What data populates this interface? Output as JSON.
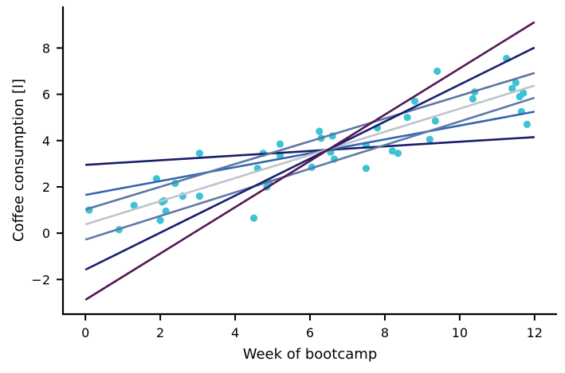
{
  "chart_data": {
    "type": "scatter",
    "title": "",
    "xlabel": "Week of bootcamp",
    "ylabel": "Coffee consumption [l]",
    "xlim": [
      -0.6,
      12.6
    ],
    "ylim": [
      -3.5,
      9.8
    ],
    "xticks": [
      0,
      2,
      4,
      6,
      8,
      10,
      12
    ],
    "yticks": [
      -2,
      0,
      2,
      4,
      6,
      8
    ],
    "grid": false,
    "legend": "none",
    "points": {
      "color": "#3cc3d4",
      "x": [
        0.1,
        0.9,
        1.3,
        1.9,
        2.0,
        2.05,
        2.1,
        2.15,
        2.4,
        2.6,
        3.05,
        3.05,
        4.5,
        4.6,
        4.75,
        4.85,
        4.9,
        5.2,
        5.2,
        6.05,
        6.25,
        6.3,
        6.55,
        6.6,
        6.65,
        7.5,
        7.5,
        7.8,
        8.2,
        8.35,
        8.6,
        8.8,
        9.2,
        9.35,
        9.4,
        10.35,
        10.4,
        11.25,
        11.4,
        11.5,
        11.6,
        11.65,
        11.7,
        11.8
      ],
      "y": [
        1.0,
        0.15,
        1.2,
        2.35,
        0.55,
        1.35,
        1.4,
        0.95,
        2.15,
        1.6,
        1.6,
        3.45,
        0.65,
        2.8,
        3.45,
        2.0,
        2.2,
        3.35,
        3.85,
        2.85,
        4.4,
        4.1,
        3.5,
        4.2,
        3.2,
        3.8,
        2.8,
        4.55,
        3.55,
        3.45,
        5.0,
        5.7,
        4.05,
        4.85,
        7.0,
        5.8,
        6.1,
        7.55,
        6.25,
        6.5,
        5.9,
        5.25,
        6.05,
        4.7
      ]
    },
    "series": [
      {
        "color": "#191d6a",
        "x": [
          0,
          12
        ],
        "y": [
          2.95,
          4.15
        ]
      },
      {
        "color": "#3765ad",
        "x": [
          0,
          12
        ],
        "y": [
          1.65,
          5.25
        ]
      },
      {
        "color": "#5d7aa8",
        "x": [
          0,
          12
        ],
        "y": [
          -0.28,
          5.85
        ]
      },
      {
        "color": "#c0c4ca",
        "x": [
          0,
          12
        ],
        "y": [
          0.38,
          6.38
        ]
      },
      {
        "color": "#5a77a4",
        "x": [
          0,
          12
        ],
        "y": [
          1.02,
          6.92
        ]
      },
      {
        "color": "#1a1f6e",
        "x": [
          0,
          12
        ],
        "y": [
          -1.58,
          8.02
        ]
      },
      {
        "color": "#541650",
        "x": [
          0,
          12
        ],
        "y": [
          -2.88,
          9.12
        ]
      }
    ]
  }
}
